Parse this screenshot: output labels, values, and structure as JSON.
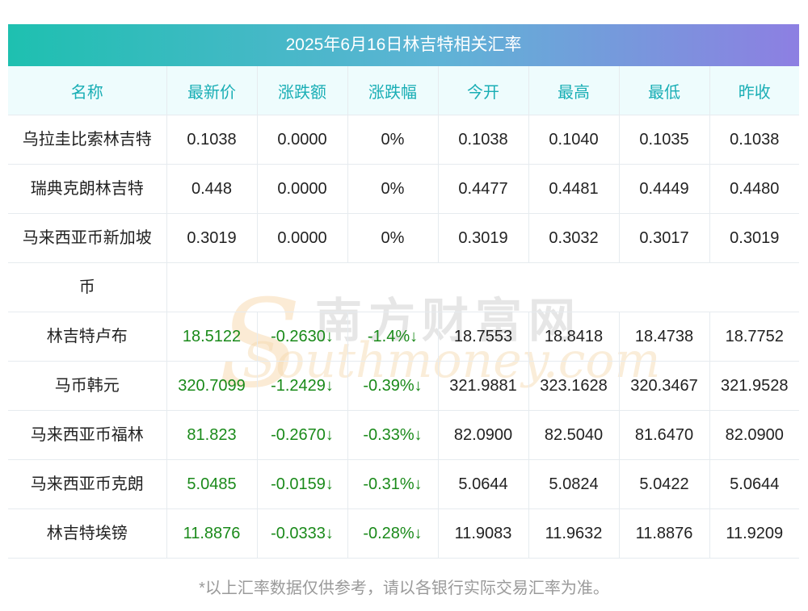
{
  "title": "2025年6月16日林吉特相关汇率",
  "headers": [
    "名称",
    "最新价",
    "涨跌额",
    "涨跌幅",
    "今开",
    "最高",
    "最低",
    "昨收"
  ],
  "rows": [
    {
      "name": "乌拉圭比索林吉特",
      "latest": "0.1038",
      "change": "0.0000",
      "pct": "0%",
      "open": "0.1038",
      "high": "0.1040",
      "low": "0.1035",
      "prev": "0.1038"
    },
    {
      "name": "瑞典克朗林吉特",
      "latest": "0.448",
      "change": "0.0000",
      "pct": "0%",
      "open": "0.4477",
      "high": "0.4481",
      "low": "0.4449",
      "prev": "0.4480"
    },
    {
      "name_line1": "马来西亚币新加坡",
      "name_line2": "币",
      "latest": "0.3019",
      "change": "0.0000",
      "pct": "0%",
      "open": "0.3019",
      "high": "0.3032",
      "low": "0.3017",
      "prev": "0.3019"
    },
    {
      "name": "林吉特卢布",
      "latest": "18.5122",
      "change": "-0.2630↓",
      "pct": "-1.4%↓",
      "open": "18.7553",
      "high": "18.8418",
      "low": "18.4738",
      "prev": "18.7752"
    },
    {
      "name": "马币韩元",
      "latest": "320.7099",
      "change": "-1.2429↓",
      "pct": "-0.39%↓",
      "open": "321.9881",
      "high": "323.1628",
      "low": "320.3467",
      "prev": "321.9528"
    },
    {
      "name": "马来西亚币福林",
      "latest": "81.823",
      "change": "-0.2670↓",
      "pct": "-0.33%↓",
      "open": "82.0900",
      "high": "82.5040",
      "low": "81.6470",
      "prev": "82.0900"
    },
    {
      "name": "马来西亚币克朗",
      "latest": "5.0485",
      "change": "-0.0159↓",
      "pct": "-0.31%↓",
      "open": "5.0644",
      "high": "5.0824",
      "low": "5.0422",
      "prev": "5.0644"
    },
    {
      "name": "林吉特埃镑",
      "latest": "11.8876",
      "change": "-0.0333↓",
      "pct": "-0.28%↓",
      "open": "11.9083",
      "high": "11.9632",
      "low": "11.8876",
      "prev": "11.9209"
    }
  ],
  "watermark": {
    "cn": "南方财富网",
    "en": "Southmoney.com"
  },
  "footnote": "*以上汇率数据仅供参考，请以各银行实际交易汇率为准。",
  "colors": {
    "header_text": "#19aeb5",
    "header_bg": "#eefcfd",
    "down": "#1a8a1a",
    "title_gradient_start": "#1ec0b0",
    "title_gradient_end": "#8d7fe2"
  }
}
